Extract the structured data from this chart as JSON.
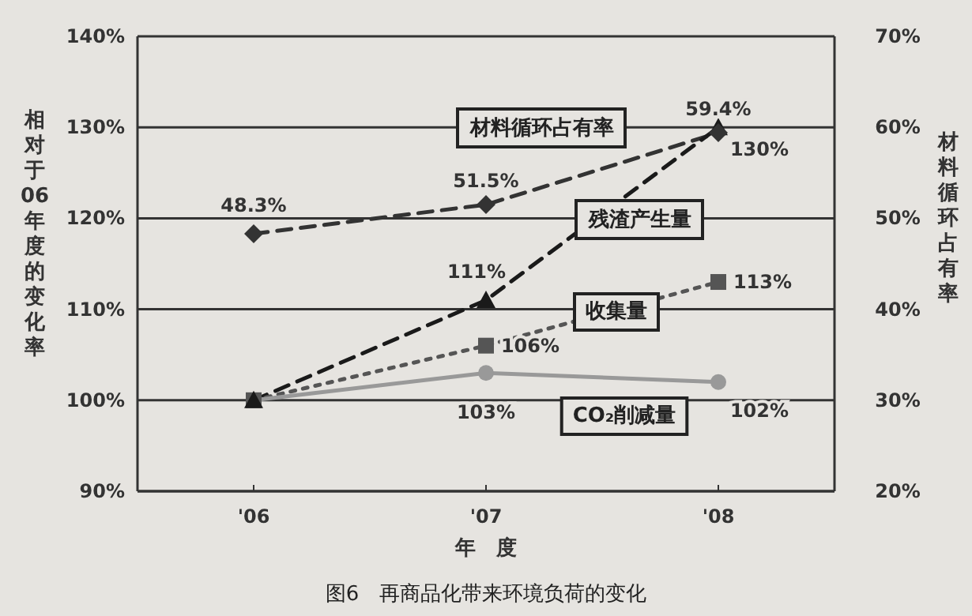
{
  "chart_data": {
    "type": "line",
    "categories": [
      "'06",
      "'07",
      "'08"
    ],
    "xlabel": "年　度",
    "ylabel": "相对于06年度的变化率",
    "y2label": "材料循环占有率",
    "ylim": [
      90,
      140
    ],
    "yticks": [
      {
        "value": 90,
        "label": "90%"
      },
      {
        "value": 100,
        "label": "100%"
      },
      {
        "value": 110,
        "label": "110%"
      },
      {
        "value": 120,
        "label": "120%"
      },
      {
        "value": 130,
        "label": "130%"
      },
      {
        "value": 140,
        "label": "140%"
      }
    ],
    "y2lim": [
      20,
      70
    ],
    "y2ticks": [
      {
        "value": 20,
        "label": "20%"
      },
      {
        "value": 30,
        "label": "30%"
      },
      {
        "value": 40,
        "label": "40%"
      },
      {
        "value": 50,
        "label": "50%"
      },
      {
        "value": 60,
        "label": "60%"
      },
      {
        "value": 70,
        "label": "70%"
      }
    ],
    "grid": "y",
    "annotations": [
      "图6　再商品化带来环境负荷的变化"
    ],
    "series": [
      {
        "name": "材料循环占有率",
        "axis": "y2",
        "color": "#333333",
        "marker": "diamond",
        "line_style": "dashed",
        "values": [
          48.3,
          51.5,
          59.4
        ],
        "value_labels": [
          "48.3%",
          "51.5%",
          "59.4%"
        ]
      },
      {
        "name": "残渣产生量",
        "color": "#1a1a1a",
        "marker": "triangle",
        "line_style": "dashed",
        "values": [
          100,
          111,
          130
        ],
        "value_labels": [
          null,
          "111%",
          "130%"
        ]
      },
      {
        "name": "收集量",
        "color": "#555555",
        "marker": "square",
        "line_style": "dotted",
        "values": [
          100,
          106,
          113
        ],
        "value_labels": [
          null,
          "106%",
          "113%"
        ]
      },
      {
        "name": "CO₂削减量",
        "color": "#999999",
        "marker": "circle",
        "line_style": "solid",
        "values": [
          100,
          103,
          102
        ],
        "value_labels": [
          null,
          "103%",
          "102%"
        ]
      }
    ]
  }
}
